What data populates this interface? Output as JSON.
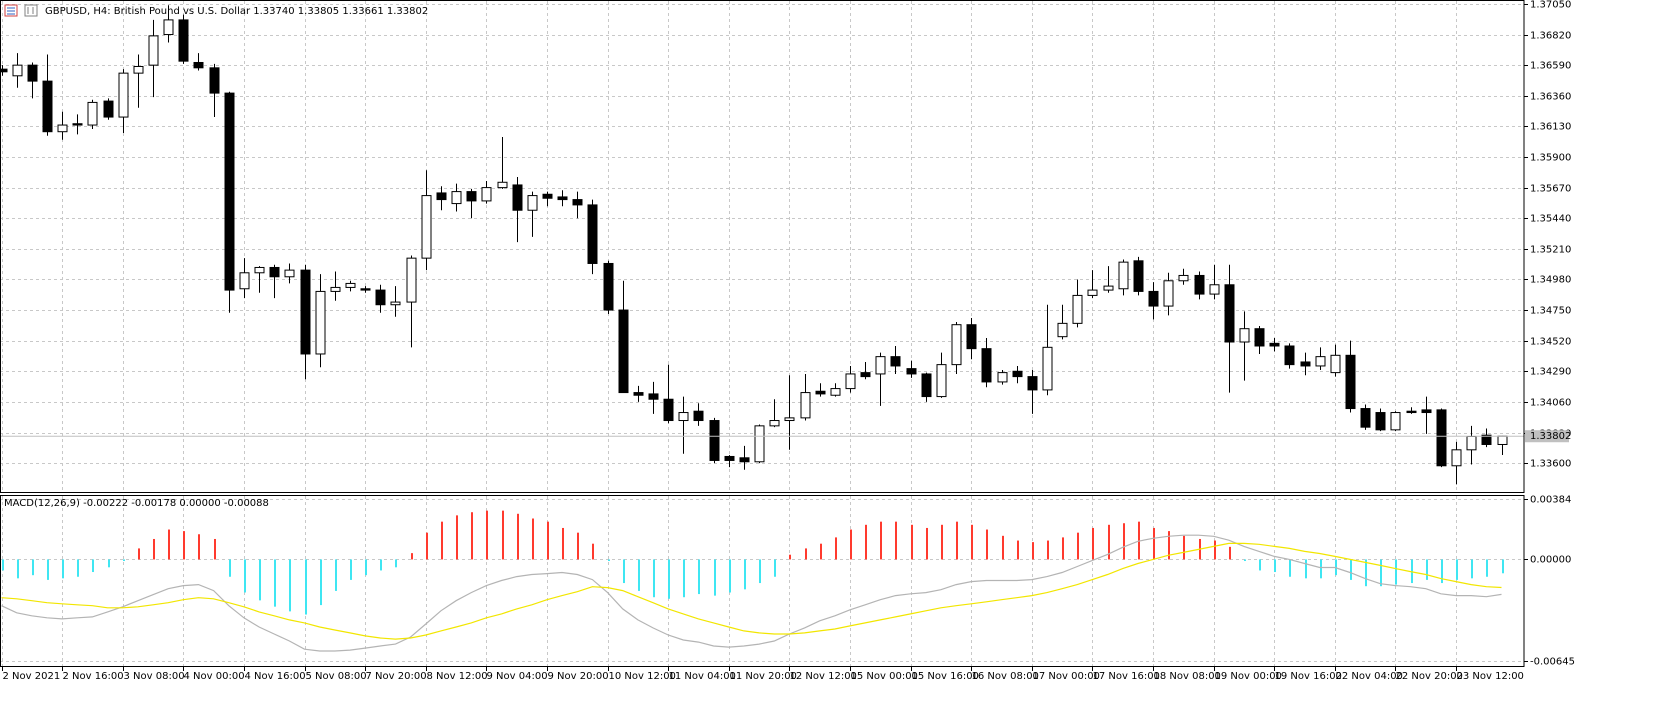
{
  "chart_data": [
    {
      "type": "candlestick",
      "title": "GBPUSD, H4:  British Pound vs U.S. Dollar  1.33740 1.33805 1.33661 1.33802",
      "categories": [
        "2 Nov 2021",
        null,
        null,
        null,
        "2 Nov 16:00",
        null,
        null,
        null,
        "3 Nov 08:00",
        null,
        null,
        null,
        "4 Nov 00:00",
        null,
        null,
        null,
        "4 Nov 16:00",
        null,
        null,
        null,
        "5 Nov 08:00",
        null,
        null,
        null,
        "7 Nov 20:00",
        null,
        null,
        null,
        "8 Nov 12:00",
        null,
        null,
        null,
        "9 Nov 04:00",
        null,
        null,
        null,
        "9 Nov 20:00",
        null,
        null,
        null,
        "10 Nov 12:00",
        null,
        null,
        null,
        "11 Nov 04:00",
        null,
        null,
        null,
        "11 Nov 20:00",
        null,
        null,
        null,
        "12 Nov 12:00",
        null,
        null,
        null,
        "15 Nov 00:00",
        null,
        null,
        null,
        "15 Nov 16:00",
        null,
        null,
        null,
        "16 Nov 08:00",
        null,
        null,
        null,
        "17 Nov 00:00",
        null,
        null,
        null,
        "17 Nov 16:00",
        null,
        null,
        null,
        "18 Nov 08:00",
        null,
        null,
        null,
        "19 Nov 00:00",
        null,
        null,
        null,
        "19 Nov 16:00",
        null,
        null,
        null,
        "22 Nov 04:00",
        null,
        null,
        null,
        "22 Nov 20:00",
        null,
        null,
        null,
        "23 Nov 12:00",
        null,
        null,
        null
      ],
      "open": [
        1.3656,
        1.3651,
        1.3659,
        1.3647,
        1.3609,
        1.3615,
        1.3614,
        1.3632,
        1.362,
        1.3653,
        1.3659,
        1.3682,
        1.3693,
        1.3661,
        1.3657,
        1.3638,
        1.3491,
        1.3503,
        1.3507,
        1.35,
        1.3505,
        1.3442,
        1.3489,
        1.3492,
        1.3491,
        1.349,
        1.3479,
        1.3481,
        1.3514,
        1.3563,
        1.3555,
        1.3564,
        1.3557,
        1.3567,
        1.3569,
        1.355,
        1.3562,
        1.356,
        1.3558,
        1.3554,
        1.351,
        1.3475,
        1.3413,
        1.3412,
        1.3408,
        1.3392,
        1.3399,
        1.3392,
        1.3365,
        1.3364,
        1.3361,
        1.3388,
        1.3392,
        1.3394,
        1.3414,
        1.3411,
        1.3416,
        1.3428,
        1.3427,
        1.344,
        1.3431,
        1.3427,
        1.341,
        1.3434,
        1.3464,
        1.3446,
        1.3421,
        1.3429,
        1.3425,
        1.3415,
        1.3455,
        1.3465,
        1.3486,
        1.349,
        1.3491,
        1.3512,
        1.3489,
        1.3478,
        1.3497,
        1.3501,
        1.3487,
        1.3494,
        1.3451,
        1.3461,
        1.345,
        1.3448,
        1.3436,
        1.3433,
        1.3428,
        1.3441,
        1.3401,
        1.3398,
        1.3385,
        1.3399,
        1.34,
        1.34,
        1.3358,
        1.337,
        1.3381,
        1.3374
      ],
      "high": [
        1.3659,
        1.3668,
        1.3661,
        1.3667,
        1.3624,
        1.3622,
        1.3633,
        1.3634,
        1.3656,
        1.3667,
        1.3693,
        1.3704,
        1.3697,
        1.3668,
        1.366,
        1.3639,
        1.3514,
        1.3508,
        1.3509,
        1.351,
        1.3509,
        1.3502,
        1.3504,
        1.3497,
        1.3493,
        1.3494,
        1.3493,
        1.3516,
        1.358,
        1.3568,
        1.357,
        1.3566,
        1.3572,
        1.3605,
        1.3575,
        1.3564,
        1.3564,
        1.3565,
        1.3564,
        1.3558,
        1.3512,
        1.3497,
        1.3418,
        1.3421,
        1.3434,
        1.341,
        1.3405,
        1.3394,
        1.3366,
        1.3373,
        1.3389,
        1.3408,
        1.3426,
        1.3427,
        1.342,
        1.342,
        1.3433,
        1.3436,
        1.3443,
        1.3448,
        1.3437,
        1.3428,
        1.3443,
        1.3466,
        1.3469,
        1.3454,
        1.343,
        1.3433,
        1.343,
        1.3479,
        1.3479,
        1.3498,
        1.3505,
        1.3508,
        1.3513,
        1.3515,
        1.3496,
        1.3503,
        1.3506,
        1.3504,
        1.3509,
        1.3509,
        1.3474,
        1.3463,
        1.3454,
        1.345,
        1.3443,
        1.3447,
        1.3449,
        1.3452,
        1.3404,
        1.3401,
        1.3399,
        1.3402,
        1.341,
        1.3401,
        1.3376,
        1.3388,
        1.3386,
        1.33805
      ],
      "low": [
        1.3651,
        1.3642,
        1.3634,
        1.3606,
        1.3603,
        1.3607,
        1.3611,
        1.3618,
        1.3608,
        1.3627,
        1.3635,
        1.3676,
        1.366,
        1.3655,
        1.362,
        1.3473,
        1.3484,
        1.3488,
        1.3484,
        1.3495,
        1.3423,
        1.3432,
        1.3482,
        1.3489,
        1.3488,
        1.3473,
        1.347,
        1.3447,
        1.3505,
        1.355,
        1.3549,
        1.3544,
        1.3555,
        1.3566,
        1.3526,
        1.353,
        1.3553,
        1.3553,
        1.3544,
        1.3502,
        1.3472,
        1.3413,
        1.3406,
        1.3397,
        1.339,
        1.3367,
        1.3388,
        1.336,
        1.3357,
        1.3355,
        1.336,
        1.3387,
        1.337,
        1.3392,
        1.341,
        1.341,
        1.3413,
        1.3423,
        1.3403,
        1.3427,
        1.3424,
        1.3406,
        1.3409,
        1.3427,
        1.3438,
        1.3417,
        1.3419,
        1.342,
        1.3397,
        1.3411,
        1.3453,
        1.3462,
        1.3484,
        1.3488,
        1.3486,
        1.3486,
        1.3468,
        1.3471,
        1.3494,
        1.3483,
        1.3483,
        1.3413,
        1.3422,
        1.3442,
        1.3444,
        1.3431,
        1.3426,
        1.343,
        1.3425,
        1.3398,
        1.3385,
        1.3384,
        1.3384,
        1.3397,
        1.3382,
        1.3357,
        1.3344,
        1.3359,
        1.3372,
        1.33661
      ],
      "close": [
        1.3654,
        1.3659,
        1.3647,
        1.3609,
        1.3614,
        1.3614,
        1.3631,
        1.362,
        1.3653,
        1.3658,
        1.3681,
        1.3693,
        1.3662,
        1.3657,
        1.3638,
        1.349,
        1.3503,
        1.3507,
        1.35,
        1.3505,
        1.3442,
        1.3489,
        1.3492,
        1.3495,
        1.349,
        1.3479,
        1.3481,
        1.3514,
        1.3561,
        1.3558,
        1.3564,
        1.3557,
        1.3567,
        1.3571,
        1.355,
        1.3561,
        1.3559,
        1.3558,
        1.3554,
        1.351,
        1.3475,
        1.3413,
        1.3411,
        1.3408,
        1.3392,
        1.3398,
        1.3392,
        1.3362,
        1.3362,
        1.3361,
        1.3388,
        1.3392,
        1.3394,
        1.3413,
        1.3412,
        1.3416,
        1.3427,
        1.3425,
        1.344,
        1.3433,
        1.3427,
        1.341,
        1.3434,
        1.3464,
        1.3446,
        1.3421,
        1.3428,
        1.3425,
        1.3415,
        1.3447,
        1.3465,
        1.3486,
        1.349,
        1.3493,
        1.3511,
        1.3489,
        1.3478,
        1.3497,
        1.3501,
        1.3487,
        1.3494,
        1.3451,
        1.3461,
        1.3448,
        1.3448,
        1.3434,
        1.3433,
        1.344,
        1.3441,
        1.3401,
        1.3387,
        1.3385,
        1.3398,
        1.3398,
        1.3398,
        1.3358,
        1.337,
        1.338,
        1.3374,
        1.33802
      ],
      "up_color": "#ffffff",
      "down_color": "#000000",
      "outline_color": "#000000",
      "price_line_color": "#c0c0c0",
      "ylim": [
        1.33383,
        1.37072
      ],
      "yticks": [
        {
          "value": 1.3705,
          "label": "1.37050"
        },
        {
          "value": 1.3682,
          "label": "1.36820"
        },
        {
          "value": 1.3659,
          "label": "1.36590"
        },
        {
          "value": 1.3636,
          "label": "1.36360"
        },
        {
          "value": 1.3613,
          "label": "1.36130"
        },
        {
          "value": 1.359,
          "label": "1.35900"
        },
        {
          "value": 1.3567,
          "label": "1.35670"
        },
        {
          "value": 1.3544,
          "label": "1.35440"
        },
        {
          "value": 1.3521,
          "label": "1.35210"
        },
        {
          "value": 1.3498,
          "label": "1.34980"
        },
        {
          "value": 1.3475,
          "label": "1.34750"
        },
        {
          "value": 1.3452,
          "label": "1.34520"
        },
        {
          "value": 1.3429,
          "label": "1.34290"
        },
        {
          "value": 1.3406,
          "label": "1.34060"
        },
        {
          "value": 1.3383,
          "label": "1.33830"
        },
        {
          "value": 1.336,
          "label": "1.33600"
        }
      ],
      "grid": true
    },
    {
      "type": "macd",
      "title": "MACD(12,26,9) -0.00222 -0.00178 0.00000 -0.00088",
      "histogram": [
        -0.0007,
        -0.0012,
        -0.001,
        -0.0013,
        -0.0012,
        -0.0011,
        -0.0008,
        -0.0005,
        -0.0001,
        0.0007,
        0.0013,
        0.0019,
        0.0018,
        0.0016,
        0.0013,
        -0.0011,
        -0.0021,
        -0.0026,
        -0.003,
        -0.0033,
        -0.0035,
        -0.0029,
        -0.002,
        -0.0013,
        -0.001,
        -0.0007,
        -0.0005,
        0.0004,
        0.0017,
        0.0024,
        0.0028,
        0.003,
        0.0031,
        0.0031,
        0.0029,
        0.0026,
        0.0024,
        0.002,
        0.0017,
        0.001,
        -0.0001,
        -0.0015,
        -0.002,
        -0.0024,
        -0.0025,
        -0.0024,
        -0.0022,
        -0.0023,
        -0.0021,
        -0.0019,
        -0.0015,
        -0.0011,
        0.0003,
        0.0007,
        0.001,
        0.0014,
        0.0019,
        0.0022,
        0.0024,
        0.0024,
        0.0022,
        0.002,
        0.0022,
        0.0024,
        0.0022,
        0.0019,
        0.0015,
        0.0012,
        0.0011,
        0.0012,
        0.0014,
        0.0017,
        0.002,
        0.0022,
        0.0023,
        0.0024,
        0.002,
        0.0018,
        0.0015,
        0.0013,
        0.0012,
        0.0008,
        -0.0001,
        -0.0007,
        -0.0008,
        -0.0011,
        -0.0012,
        -0.0012,
        -0.001,
        -0.0013,
        -0.0017,
        -0.0017,
        -0.0016,
        -0.0015,
        -0.0013,
        -0.0015,
        -0.0013,
        -0.0012,
        -0.0011,
        -0.00088
      ],
      "main": [
        -0.00294,
        -0.00339,
        -0.00358,
        -0.00371,
        -0.00378,
        -0.00371,
        -0.00365,
        -0.00333,
        -0.00301,
        -0.00262,
        -0.00224,
        -0.00186,
        -0.00166,
        -0.0016,
        -0.00198,
        -0.00294,
        -0.00371,
        -0.00429,
        -0.00474,
        -0.00518,
        -0.0057,
        -0.00582,
        -0.00582,
        -0.00576,
        -0.00563,
        -0.0055,
        -0.00538,
        -0.00493,
        -0.0041,
        -0.00326,
        -0.00262,
        -0.00211,
        -0.00166,
        -0.00134,
        -0.00109,
        -0.00096,
        -0.0009,
        -0.00083,
        -0.00096,
        -0.00128,
        -0.00211,
        -0.00314,
        -0.00384,
        -0.00435,
        -0.0048,
        -0.00512,
        -0.00525,
        -0.0055,
        -0.00557,
        -0.0055,
        -0.00538,
        -0.00518,
        -0.00474,
        -0.00435,
        -0.0039,
        -0.00358,
        -0.0032,
        -0.00288,
        -0.00256,
        -0.0023,
        -0.00218,
        -0.00211,
        -0.00192,
        -0.0016,
        -0.00141,
        -0.00134,
        -0.00134,
        -0.00134,
        -0.00128,
        -0.00109,
        -0.00083,
        -0.00045,
        -6e-05,
        0.00032,
        0.00077,
        0.00115,
        0.00134,
        0.00147,
        0.00154,
        0.00154,
        0.00147,
        0.00122,
        0.00083,
        0.00051,
        0.00019,
        0,
        -0.00026,
        -0.00051,
        -0.00051,
        -0.00083,
        -0.00122,
        -0.00154,
        -0.00166,
        -0.00173,
        -0.00186,
        -0.00218,
        -0.0023,
        -0.0023,
        -0.00237,
        -0.00222
      ],
      "signal": [
        -0.00243,
        -0.0025,
        -0.00262,
        -0.00275,
        -0.00282,
        -0.00288,
        -0.00294,
        -0.00307,
        -0.00307,
        -0.00301,
        -0.00288,
        -0.00275,
        -0.00256,
        -0.00243,
        -0.0025,
        -0.00275,
        -0.00301,
        -0.00333,
        -0.00358,
        -0.00384,
        -0.00403,
        -0.00429,
        -0.00448,
        -0.00467,
        -0.00486,
        -0.00499,
        -0.00506,
        -0.00499,
        -0.0048,
        -0.00454,
        -0.00429,
        -0.00403,
        -0.00371,
        -0.00346,
        -0.00314,
        -0.00288,
        -0.00256,
        -0.0023,
        -0.00205,
        -0.00173,
        -0.00179,
        -0.00198,
        -0.00237,
        -0.00275,
        -0.00314,
        -0.00346,
        -0.00378,
        -0.00403,
        -0.00429,
        -0.00454,
        -0.00467,
        -0.00474,
        -0.00474,
        -0.00467,
        -0.00454,
        -0.00442,
        -0.00422,
        -0.00403,
        -0.00384,
        -0.00365,
        -0.00346,
        -0.00326,
        -0.00307,
        -0.00294,
        -0.00282,
        -0.00269,
        -0.00256,
        -0.00243,
        -0.0023,
        -0.00211,
        -0.00186,
        -0.0016,
        -0.00128,
        -0.00096,
        -0.00058,
        -0.00026,
        0,
        0.00026,
        0.00045,
        0.00064,
        0.00083,
        0.00102,
        0.00102,
        0.00096,
        0.00083,
        0.0007,
        0.00051,
        0.00038,
        0.00019,
        0,
        -0.00019,
        -0.00038,
        -0.00058,
        -0.00077,
        -0.00096,
        -0.00122,
        -0.00141,
        -0.0016,
        -0.00173,
        -0.00178
      ],
      "up_color": "#ff3a2e",
      "down_color": "#3fe6f2",
      "main_color": "#b4b4b4",
      "signal_color": "#f2e600",
      "ylim": [
        -0.00677,
        0.00403
      ],
      "yticks": [
        0.00384,
        {
          "value": 0,
          "label": "0.00000"
        },
        -0.00645
      ],
      "grid": true
    }
  ]
}
